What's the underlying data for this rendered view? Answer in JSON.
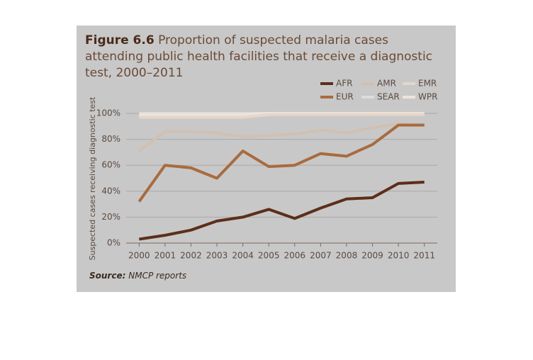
{
  "chart_data": {
    "type": "line",
    "figure_label": "Figure 6.6",
    "title": "Proportion of suspected malaria cases attending public health facilities that receive a diagnostic test, 2000–2011",
    "y_label": "Suspected cases receiving diagnostic test",
    "source_label": "Source:",
    "source": "NMCP reports",
    "categories": [
      "2000",
      "2001",
      "2002",
      "2003",
      "2004",
      "2005",
      "2006",
      "2007",
      "2008",
      "2009",
      "2010",
      "2011"
    ],
    "series": [
      {
        "name": "AFR",
        "color": "#5c2e1a",
        "values": [
          3,
          6,
          10,
          17,
          20,
          26,
          19,
          27,
          34,
          35,
          46,
          47
        ]
      },
      {
        "name": "AMR",
        "color": "#d2c0b0",
        "values": [
          71,
          86,
          86,
          85,
          82,
          83,
          84,
          87,
          85,
          89,
          92,
          91
        ]
      },
      {
        "name": "EMR",
        "color": "#e4d6ca",
        "values": [
          97,
          97,
          97,
          97,
          97,
          99,
          99,
          99,
          99,
          99,
          99,
          99
        ]
      },
      {
        "name": "EUR",
        "color": "#a86b3f",
        "values": [
          32,
          60,
          58,
          50,
          71,
          59,
          60,
          69,
          67,
          76,
          91,
          91
        ]
      },
      {
        "name": "SEAR",
        "color": "#dcdcdc",
        "values": [
          100,
          100,
          100,
          100,
          100,
          100,
          100,
          100,
          100,
          100,
          100,
          100
        ]
      },
      {
        "name": "WPR",
        "color": "#eee4da",
        "values": [
          99,
          99,
          99,
          99,
          99,
          100,
          100,
          100,
          100,
          100,
          100,
          100
        ]
      }
    ],
    "ylim": [
      0,
      100
    ],
    "yticks": [
      {
        "value": 0,
        "label": "0%"
      },
      {
        "value": 20,
        "label": "20%"
      },
      {
        "value": 40,
        "label": "40%"
      },
      {
        "value": 60,
        "label": "60%"
      },
      {
        "value": 80,
        "label": "80%"
      },
      {
        "value": 100,
        "label": "100%"
      }
    ],
    "grid": true
  }
}
